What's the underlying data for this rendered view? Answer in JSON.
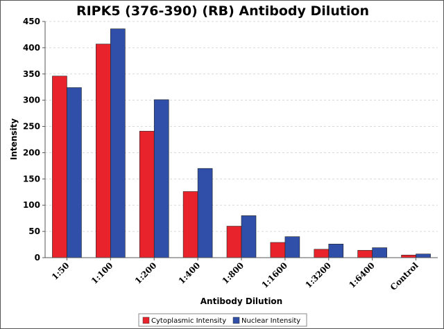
{
  "chart_data": {
    "type": "bar",
    "title": "RIPK5 (376-390) (RB) Antibody Dilution",
    "xlabel": "Antibody Dilution",
    "ylabel": "Intensity",
    "ylim": [
      0,
      450
    ],
    "yticks": [
      0,
      50,
      100,
      150,
      200,
      250,
      300,
      350,
      400,
      450
    ],
    "categories": [
      "1:50",
      "1:100",
      "1:200",
      "1:400",
      "1:800",
      "1:1600",
      "1:3200",
      "1:6400",
      "Control"
    ],
    "series": [
      {
        "name": "Cytoplasmic Intensity",
        "color": "#e8232b",
        "values": [
          346,
          407,
          241,
          126,
          60,
          29,
          16,
          14,
          5
        ]
      },
      {
        "name": "Nuclear Intensity",
        "color": "#2f4fa8",
        "values": [
          324,
          436,
          301,
          170,
          80,
          40,
          26,
          19,
          7
        ]
      }
    ],
    "grid": true,
    "legend_position": "bottom"
  }
}
